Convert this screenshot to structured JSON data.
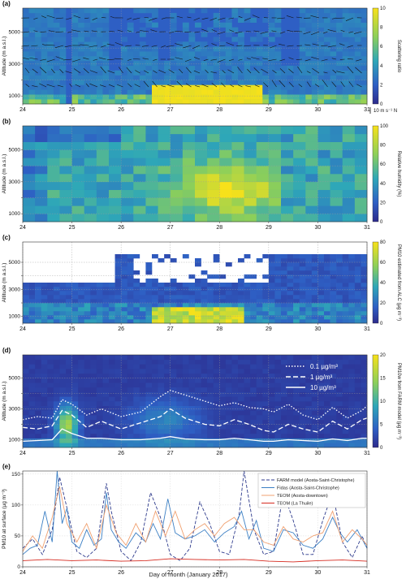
{
  "figure": {
    "xlabel": "Day of month (January 2017)"
  },
  "chart_data": [
    {
      "panel": "(a)",
      "type": "heatmap",
      "ylabel": "Altitude (m a.s.l.)",
      "colorbar_label": "Scattering ratio",
      "colorbar_ticks": [
        0,
        2,
        4,
        6,
        8,
        10
      ],
      "colorbar_range": [
        0,
        10
      ],
      "yticks": [
        1000,
        2000,
        3000,
        4000,
        5000
      ],
      "yticklabels": [
        "1000",
        "",
        "3000",
        "",
        "5000"
      ],
      "ylim": [
        500,
        6500
      ],
      "xticks": [
        24,
        25,
        26,
        27,
        28,
        29,
        30,
        31
      ],
      "xlim": [
        24,
        31
      ],
      "wind_scale_label": "10 m s⁻¹ N",
      "colors": {
        "low": "#2b5fbf",
        "mid": "#3aa8a0",
        "high": "#f5e11a",
        "nodata": "#ffffff"
      }
    },
    {
      "panel": "(b)",
      "type": "heatmap",
      "ylabel": "Altitude (m a.s.l.)",
      "colorbar_label": "Relative humidity (%)",
      "colorbar_ticks": [
        0,
        20,
        40,
        60,
        80,
        100
      ],
      "colorbar_range": [
        0,
        100
      ],
      "yticks": [
        1000,
        2000,
        3000,
        4000,
        5000
      ],
      "yticklabels": [
        "1000",
        "",
        "3000",
        "",
        "5000"
      ],
      "ylim": [
        500,
        6500
      ],
      "xticks": [
        24,
        25,
        26,
        27,
        28,
        29,
        30,
        31
      ],
      "xlim": [
        24,
        31
      ]
    },
    {
      "panel": "(c)",
      "type": "heatmap",
      "ylabel": "Altitude (m a.s.l.)",
      "colorbar_label": "PM10 estimated from ALC (µg m⁻³)",
      "colorbar_ticks": [
        0,
        20,
        40,
        60,
        80
      ],
      "colorbar_range": [
        0,
        80
      ],
      "yticks": [
        1000,
        2000,
        3000,
        4000,
        5000
      ],
      "yticklabels": [
        "1000",
        "",
        "3000",
        "",
        "5000"
      ],
      "ylim": [
        500,
        6500
      ],
      "xticks": [
        24,
        25,
        26,
        27,
        28,
        29,
        30,
        31
      ],
      "xlim": [
        24,
        31
      ]
    },
    {
      "panel": "(d)",
      "type": "heatmap",
      "ylabel": "Altitude (m a.s.l.)",
      "colorbar_label": "PM10w from FARM model (µg m⁻³)",
      "colorbar_ticks": [
        0,
        5,
        10,
        15,
        20
      ],
      "colorbar_range": [
        0,
        20
      ],
      "yticks": [
        1000,
        2000,
        3000,
        4000,
        5000
      ],
      "yticklabels": [
        "1000",
        "",
        "3000",
        "",
        "5000"
      ],
      "ylim": [
        500,
        6500
      ],
      "xticks": [
        24,
        25,
        26,
        27,
        28,
        29,
        30,
        31
      ],
      "xlim": [
        24,
        31
      ],
      "legend": [
        "0.1 µg/m³",
        "1 µg/m³",
        "10 µg/m³"
      ],
      "legend_placement": "top-right",
      "contours": [
        {
          "name": "0.1 µg/m³",
          "style": "dotted",
          "x": [
            24.0,
            24.3,
            24.6,
            24.8,
            25.0,
            25.3,
            25.6,
            26.0,
            26.4,
            26.8,
            27.0,
            27.3,
            27.7,
            28.0,
            28.3,
            28.6,
            28.9,
            29.1,
            29.4,
            29.7,
            30.0,
            30.3,
            30.6,
            30.9,
            31.0
          ],
          "y": [
            2300,
            2500,
            2400,
            3600,
            3300,
            2600,
            3000,
            2500,
            2800,
            3800,
            4200,
            3900,
            3500,
            3200,
            3400,
            3100,
            3000,
            2800,
            3300,
            2600,
            2300,
            3100,
            2400,
            2900,
            3200
          ]
        },
        {
          "name": "1 µg/m³",
          "style": "dashed",
          "x": [
            24.0,
            24.3,
            24.6,
            24.8,
            25.0,
            25.3,
            25.6,
            26.0,
            26.4,
            26.8,
            27.0,
            27.3,
            27.7,
            28.0,
            28.3,
            28.6,
            28.9,
            29.1,
            29.4,
            29.7,
            30.0,
            30.3,
            30.6,
            30.9,
            31.0
          ],
          "y": [
            1800,
            1700,
            1900,
            2900,
            2600,
            1800,
            2200,
            1700,
            2100,
            2500,
            3000,
            2400,
            2000,
            1900,
            2300,
            2000,
            1600,
            1500,
            2000,
            1700,
            1500,
            2200,
            1700,
            2300,
            2400
          ]
        },
        {
          "name": "10 µg/m³",
          "style": "solid",
          "x": [
            24.0,
            24.3,
            24.6,
            24.8,
            25.0,
            25.3,
            25.6,
            26.0,
            26.4,
            26.8,
            27.0,
            27.3,
            27.7,
            28.0,
            28.3,
            28.6,
            28.9,
            29.1,
            29.4,
            29.7,
            30.0,
            30.3,
            30.6,
            30.9,
            31.0
          ],
          "y": [
            900,
            950,
            1000,
            1700,
            1400,
            1100,
            1100,
            1000,
            1000,
            1100,
            1200,
            1050,
            1000,
            1000,
            1100,
            1000,
            900,
            900,
            1000,
            950,
            900,
            1050,
            950,
            1100,
            1100
          ]
        }
      ]
    },
    {
      "panel": "(e)",
      "type": "line",
      "ylabel": "PM10 at surface (µg m⁻³)",
      "yticks": [
        0,
        50,
        100,
        150
      ],
      "ylim": [
        0,
        155
      ],
      "xticks": [
        24,
        25,
        26,
        27,
        28,
        29,
        30,
        31
      ],
      "xlim": [
        24,
        31
      ],
      "legend_placement": "top-right",
      "series": [
        {
          "name": "FARM model (Aosta-Saint-Christophe)",
          "style": "dashed",
          "color": "#2d3a8c",
          "x": [
            24.0,
            24.2,
            24.4,
            24.6,
            24.75,
            24.9,
            25.1,
            25.3,
            25.5,
            25.7,
            25.8,
            26.0,
            26.2,
            26.4,
            26.6,
            26.8,
            27.0,
            27.2,
            27.4,
            27.6,
            27.8,
            28.0,
            28.2,
            28.4,
            28.5,
            28.7,
            28.9,
            29.1,
            29.3,
            29.5,
            29.7,
            29.9,
            30.1,
            30.3,
            30.5,
            30.7,
            30.9,
            31.0
          ],
          "values": [
            30,
            45,
            20,
            60,
            145,
            95,
            25,
            15,
            30,
            135,
            90,
            25,
            10,
            40,
            120,
            80,
            20,
            10,
            30,
            105,
            70,
            25,
            20,
            85,
            155,
            60,
            20,
            25,
            120,
            75,
            20,
            20,
            75,
            120,
            40,
            15,
            50,
            30
          ]
        },
        {
          "name": "Fidas (Aosta-Saint-Christophe)",
          "style": "solid",
          "color": "#3b7fc4",
          "x": [
            24.0,
            24.15,
            24.3,
            24.45,
            24.6,
            24.7,
            24.8,
            24.9,
            25.0,
            25.15,
            25.3,
            25.45,
            25.6,
            25.7,
            25.8,
            25.95,
            26.1,
            26.3,
            26.5,
            26.65,
            26.8,
            26.95,
            27.1,
            27.3,
            27.5,
            27.7,
            27.9,
            28.1,
            28.3,
            28.45,
            28.6,
            28.75,
            28.9,
            29.1,
            29.3,
            29.5,
            29.7,
            29.9,
            30.1,
            30.3,
            30.45,
            30.6,
            30.8,
            31.0
          ],
          "values": [
            20,
            30,
            35,
            90,
            40,
            155,
            70,
            95,
            40,
            30,
            60,
            35,
            45,
            120,
            60,
            40,
            30,
            55,
            40,
            70,
            45,
            110,
            55,
            45,
            50,
            60,
            40,
            55,
            65,
            90,
            45,
            75,
            30,
            25,
            60,
            55,
            35,
            30,
            45,
            80,
            55,
            40,
            60,
            30
          ]
        },
        {
          "name": "TEOM (Aosta-downtown)",
          "style": "solid",
          "color": "#f0a070",
          "x": [
            24.0,
            24.2,
            24.4,
            24.6,
            24.75,
            24.9,
            25.1,
            25.3,
            25.5,
            25.7,
            25.9,
            26.1,
            26.3,
            26.5,
            26.7,
            26.9,
            27.1,
            27.3,
            27.5,
            27.7,
            27.9,
            28.1,
            28.3,
            28.5,
            28.7,
            28.9,
            29.1,
            29.3,
            29.5,
            29.7,
            29.9,
            30.1,
            30.3,
            30.5,
            30.7,
            30.9,
            31.0
          ],
          "values": [
            25,
            50,
            30,
            80,
            130,
            70,
            40,
            70,
            30,
            100,
            55,
            35,
            70,
            40,
            90,
            50,
            90,
            45,
            60,
            70,
            50,
            70,
            80,
            60,
            60,
            40,
            35,
            65,
            45,
            40,
            50,
            55,
            90,
            40,
            60,
            45,
            35
          ]
        },
        {
          "name": "TEOM (La Thuile)",
          "style": "solid",
          "color": "#d62a1f",
          "x": [
            24.0,
            24.5,
            25.0,
            25.5,
            26.0,
            26.5,
            27.0,
            27.5,
            28.0,
            28.5,
            29.0,
            29.5,
            30.0,
            30.5,
            31.0
          ],
          "values": [
            10,
            12,
            10,
            11,
            9,
            10,
            13,
            12,
            11,
            12,
            9,
            8,
            10,
            11,
            9
          ]
        }
      ]
    }
  ]
}
